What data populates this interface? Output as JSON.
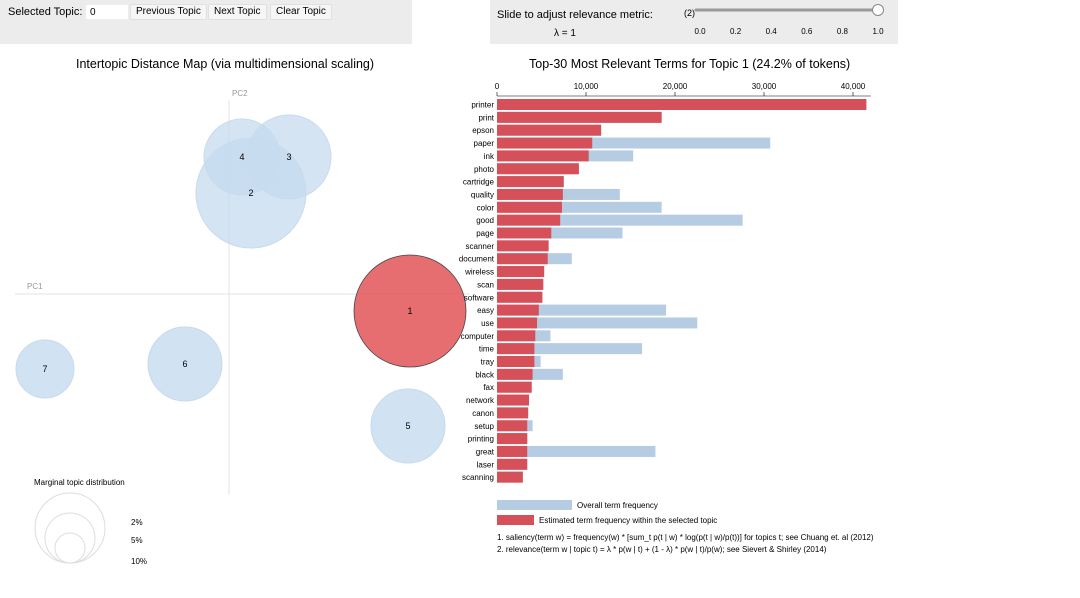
{
  "controls": {
    "selected_topic_label": "Selected Topic:",
    "selected_topic_value": "0",
    "previous_label": "Previous Topic",
    "next_label": "Next Topic",
    "clear_label": "Clear Topic",
    "slider_label": "Slide to adjust relevance metric:",
    "slider_footnote_ref": "(2)",
    "lambda_text": "λ = 1",
    "lambda_value": 1,
    "slider_ticks": [
      "0.0",
      "0.2",
      "0.4",
      "0.6",
      "0.8",
      "1.0"
    ]
  },
  "intertopic": {
    "title": "Intertopic Distance Map (via multidimensional scaling)",
    "pc1_label": "PC1",
    "pc2_label": "PC2",
    "topics": [
      "1",
      "2",
      "3",
      "4",
      "5",
      "6",
      "7"
    ],
    "selected_topic": "1",
    "colors": {
      "normal": "#c6dbef",
      "normal_stroke": "#9ecae1",
      "selected": "#e04a4d"
    },
    "marginal": {
      "title": "Marginal topic distribution",
      "legend": [
        "2%",
        "5%",
        "10%"
      ]
    }
  },
  "chart_data": {
    "type": "bar",
    "title": "Top-30 Most Relevant Terms for Topic 1 (24.2% of tokens)",
    "x_ticks": [
      "0",
      "10,000",
      "20,000",
      "30,000",
      "40,000"
    ],
    "xlim": [
      0,
      42000
    ],
    "categories": [
      "printer",
      "print",
      "epson",
      "paper",
      "ink",
      "photo",
      "cartridge",
      "quality",
      "color",
      "good",
      "page",
      "scanner",
      "document",
      "wireless",
      "scan",
      "software",
      "easy",
      "use",
      "computer",
      "time",
      "tray",
      "black",
      "fax",
      "network",
      "canon",
      "setup",
      "printing",
      "great",
      "laser",
      "scanning"
    ],
    "series": [
      {
        "name": "Overall term frequency",
        "color": "#b5cce3",
        "values": [
          41500,
          18500,
          11700,
          30700,
          15300,
          9200,
          7500,
          13800,
          18500,
          27600,
          14100,
          5800,
          8400,
          5300,
          5200,
          5100,
          19000,
          22500,
          6000,
          16300,
          4900,
          7400,
          3900,
          3600,
          3500,
          4000,
          3400,
          17800,
          3400,
          2900
        ]
      },
      {
        "name": "Estimated term frequency within the selected topic",
        "color": "#d6505a",
        "values": [
          41500,
          18500,
          11700,
          10700,
          10300,
          9200,
          7500,
          7400,
          7300,
          7100,
          6100,
          5800,
          5700,
          5300,
          5200,
          5100,
          4700,
          4500,
          4300,
          4200,
          4200,
          4000,
          3900,
          3600,
          3500,
          3400,
          3400,
          3400,
          3400,
          2900
        ]
      }
    ]
  },
  "footnotes": [
    "1. saliency(term w) = frequency(w) * [sum_t p(t | w) * log(p(t | w)/p(t))] for topics t; see Chuang et. al (2012)",
    "2. relevance(term w | topic t) = λ * p(w | t) + (1 - λ) * p(w | t)/p(w); see Sievert & Shirley (2014)"
  ]
}
